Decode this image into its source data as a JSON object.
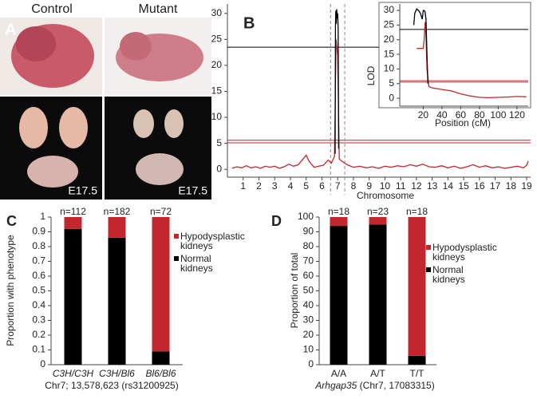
{
  "panel_a": {
    "label": "A",
    "columns": [
      "Control",
      "Mutant"
    ],
    "stage_labels": [
      "E17.5",
      "E17.5"
    ]
  },
  "chart_data": [
    {
      "type": "line",
      "panel_label": "B",
      "xlabel": "Chromosome",
      "xlim": [
        0,
        19.25
      ],
      "xticks": [
        1,
        2,
        3,
        4,
        5,
        6,
        7,
        8,
        9,
        10,
        11,
        12,
        13,
        14,
        15,
        16,
        17,
        18,
        19
      ],
      "ylim": [
        -1.5,
        31.8
      ],
      "yticks": [
        0,
        5,
        10,
        15,
        20,
        25,
        30
      ],
      "thresholds": [
        {
          "value": 23.5,
          "color": "#000000"
        },
        {
          "value": 5.6,
          "color": "#c1272d"
        },
        {
          "value": 5.1,
          "color": "#c1272d"
        }
      ],
      "highlight_x": [
        6.55,
        7.45
      ],
      "series": [
        {
          "color": "#c1272d",
          "x": [
            0.3,
            0.6,
            0.9,
            1.2,
            1.5,
            1.8,
            2.1,
            2.4,
            2.7,
            3.0,
            3.3,
            3.6,
            3.9,
            4.2,
            4.5,
            4.8,
            5.0,
            5.2,
            5.5,
            5.8,
            6.1,
            6.4,
            6.6,
            6.8,
            6.9,
            7.0,
            7.1,
            7.3,
            7.6,
            8.0,
            8.4,
            8.8,
            9.2,
            9.6,
            10.0,
            10.4,
            10.8,
            11.2,
            11.6,
            12.0,
            12.4,
            12.8,
            13.2,
            13.6,
            14.0,
            14.4,
            14.8,
            15.2,
            15.6,
            16.0,
            16.4,
            16.8,
            17.2,
            17.6,
            18.0,
            18.4,
            18.8,
            19.0,
            19.1
          ],
          "y": [
            0.2,
            0.5,
            0.3,
            0.7,
            0.3,
            0.5,
            0.2,
            0.6,
            0.4,
            0.6,
            0.2,
            0.5,
            1.0,
            0.6,
            0.9,
            2.0,
            2.7,
            1.5,
            0.4,
            0.6,
            0.8,
            1.8,
            1.2,
            2.5,
            25,
            22,
            2,
            1.5,
            0.9,
            0.4,
            0.6,
            0.3,
            0.5,
            0.2,
            0.6,
            0.4,
            0.7,
            0.5,
            0.9,
            0.6,
            1.0,
            0.5,
            0.4,
            0.7,
            0.3,
            0.6,
            0.2,
            0.5,
            0.9,
            0.4,
            0.7,
            0.3,
            0.5,
            0.2,
            0.4,
            0.6,
            0.3,
            0.8,
            1.6
          ]
        },
        {
          "color": "#000000",
          "x": [
            6.84,
            6.86,
            6.88,
            6.91,
            6.94,
            6.97,
            7.0,
            7.03,
            7.06
          ],
          "y": [
            3,
            27,
            30.5,
            28,
            30.8,
            29,
            30,
            27,
            4
          ]
        }
      ]
    },
    {
      "type": "line",
      "xlabel": "Position (cM)",
      "ylabel": "LOD",
      "xlim": [
        -5,
        132
      ],
      "xticks": [
        20,
        40,
        60,
        80,
        100,
        120
      ],
      "ylim": [
        -2.7,
        32.2
      ],
      "yticks": [
        0,
        5,
        10,
        15,
        20,
        25,
        30
      ],
      "thresholds": [
        {
          "value": 23.5,
          "color": "#000000"
        },
        {
          "value": 6,
          "color": "#c1272d"
        },
        {
          "value": 5.5,
          "color": "#c1272d"
        }
      ],
      "series": [
        {
          "color": "#c1272d",
          "x": [
            13,
            17,
            20,
            21,
            22,
            23,
            24,
            26,
            30,
            40,
            50,
            60,
            70,
            80,
            90,
            100,
            110,
            120,
            130
          ],
          "y": [
            17,
            17,
            17,
            20,
            26,
            21,
            10,
            4,
            3.5,
            3,
            2.5,
            1.5,
            0.8,
            0.3,
            0.2,
            0.3,
            0.4,
            0.6,
            0.5
          ]
        },
        {
          "color": "#000000",
          "x": [
            10,
            11,
            13,
            15,
            17,
            19,
            20,
            21,
            22,
            23,
            24,
            25
          ],
          "y": [
            25,
            29,
            30.5,
            30,
            29,
            27,
            30,
            30,
            29.5,
            27,
            15,
            5
          ]
        }
      ]
    },
    {
      "type": "bar",
      "stacked": true,
      "panel_label": "C",
      "ylabel": "Proportion with phenotype",
      "xlabel": "Chr7; 13,578,623 (rs31200925)",
      "italic_categories": true,
      "categories": [
        "C3H/C3H",
        "C3H/Bl6",
        "Bl6/Bl6"
      ],
      "counts": [
        "n=112",
        "n=182",
        "n=72"
      ],
      "ylim": [
        0,
        1
      ],
      "yticks": [
        0,
        0.1,
        0.2,
        0.3,
        0.4,
        0.5,
        0.6,
        0.7,
        0.8,
        0.9,
        1
      ],
      "legend": "right",
      "series": [
        {
          "name": "Normal kidneys",
          "color": "#000000",
          "values": [
            0.92,
            0.86,
            0.09
          ]
        },
        {
          "name": "Hypodysplastic kidneys",
          "color": "#c1272d",
          "values": [
            0.08,
            0.14,
            0.91
          ]
        }
      ]
    },
    {
      "type": "bar",
      "stacked": true,
      "panel_label": "D",
      "ylabel": "Proportion of total",
      "xlabel": "Arhgap35 (Chr7, 17083315)",
      "xlabel_italic_words": 1,
      "categories": [
        "A/A",
        "A/T",
        "T/T"
      ],
      "counts": [
        "n=18",
        "n=23",
        "n=18"
      ],
      "ylim": [
        0,
        100
      ],
      "yticks": [
        0,
        10,
        20,
        30,
        40,
        50,
        60,
        70,
        80,
        90,
        100
      ],
      "legend": "right",
      "series": [
        {
          "name": "Normal kidneys",
          "color": "#000000",
          "values": [
            94,
            95,
            6
          ]
        },
        {
          "name": "Hypodysplastic kidneys",
          "color": "#c1272d",
          "values": [
            6,
            5,
            94
          ]
        }
      ]
    }
  ]
}
